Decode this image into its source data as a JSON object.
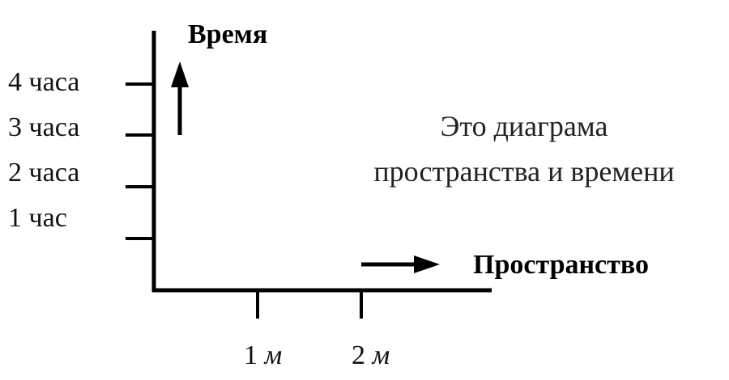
{
  "axes": {
    "time_label": "Время",
    "space_label": "Пространство"
  },
  "time_ticks": [
    "4 часа",
    "3 часа",
    "2 часа",
    "1 час"
  ],
  "space_ticks": [
    {
      "number": "1",
      "unit": "м"
    },
    {
      "number": "2",
      "unit": "м"
    }
  ],
  "note": {
    "line1": "Это диаграма",
    "line2": "пространства и времени"
  },
  "colors": {
    "ink": "#000000",
    "background": "#ffffff"
  }
}
